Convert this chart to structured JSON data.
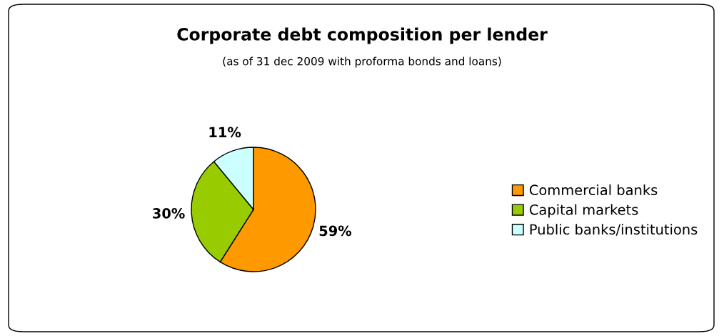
{
  "chart_data": {
    "type": "pie",
    "title": "Corporate debt composition per lender",
    "subtitle": "(as of 31 dec 2009 with proforma bonds and loans)",
    "categories": [
      "Commercial banks",
      "Capital markets",
      "Public banks/institutions"
    ],
    "values": [
      59,
      30,
      11
    ],
    "colors": [
      "#ff9900",
      "#99cc00",
      "#ccffff"
    ],
    "value_labels": [
      "59%",
      "30%",
      "11%"
    ],
    "legend": "right"
  }
}
